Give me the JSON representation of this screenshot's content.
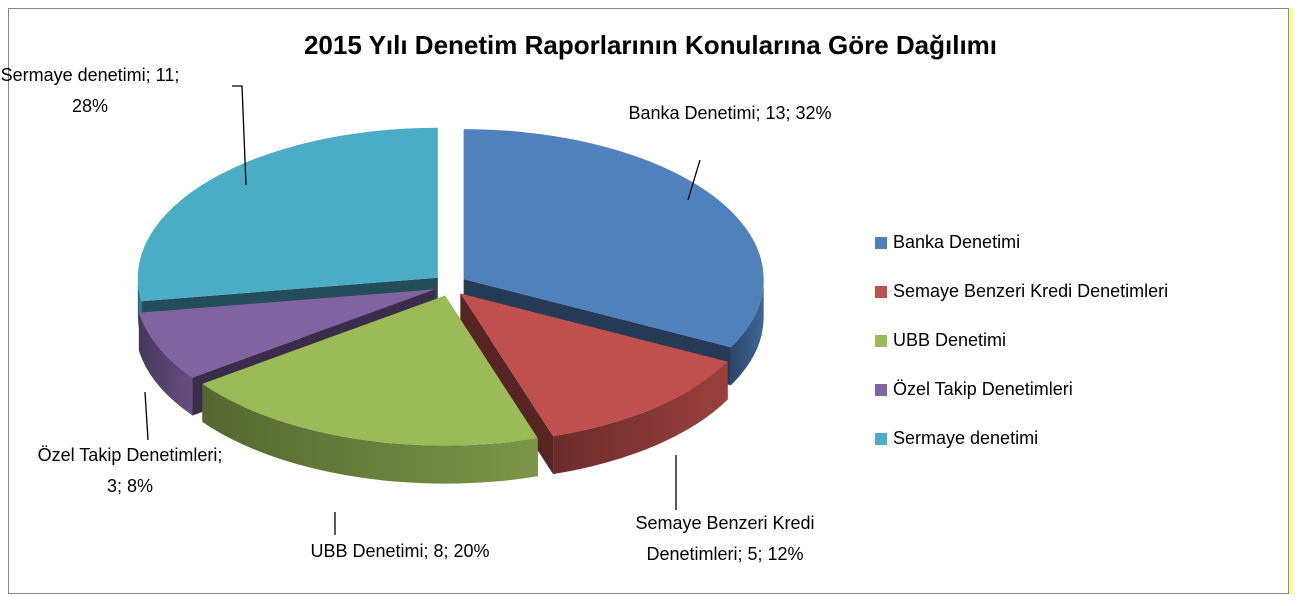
{
  "chart_data": {
    "type": "pie",
    "title": "2015 Yılı  Denetim Raporlarının Konularına Göre Dağılımı",
    "categories": [
      "Banka Denetimi",
      "Semaye Benzeri Kredi Denetimleri",
      "UBB Denetimi",
      "Özel Takip Denetimleri",
      "Sermaye denetimi"
    ],
    "values": [
      13,
      5,
      8,
      3,
      11
    ],
    "value_labels": [
      "Banka Denetimi; 13; 32%",
      "Semaye Benzeri Kredi Denetimleri; 5; 12%",
      "UBB Denetimi; 8; 20%",
      "Özel Takip Denetimleri; 3; 8%",
      "Sermaye denetimi; 11; 28%"
    ],
    "colors": [
      "#4f81bd",
      "#c0504d",
      "#9bbb59",
      "#8064a2",
      "#4bacc6"
    ],
    "legend": "right"
  }
}
